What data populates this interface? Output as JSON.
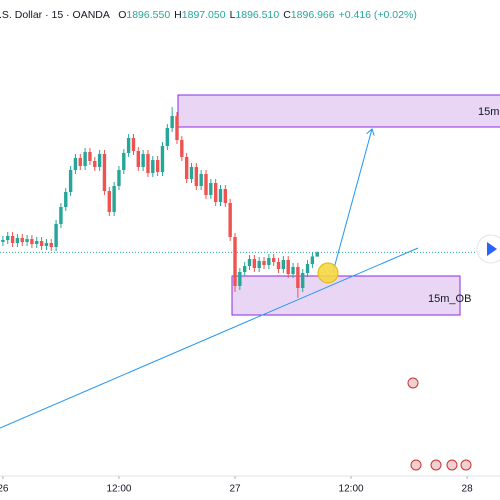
{
  "header": {
    "symbol": ".S. Dollar · 15 · OANDA",
    "ohlc": [
      {
        "label": "O",
        "value": "1896.550"
      },
      {
        "label": "H",
        "value": "1897.050"
      },
      {
        "label": "L",
        "value": "1896.510"
      },
      {
        "label": "C",
        "value": "1896.966"
      }
    ],
    "change": "+0.416 (+0.02%)"
  },
  "zones": [
    {
      "label": "15m"
    },
    {
      "label": "15m_OB"
    }
  ],
  "chart_data": {
    "type": "candlestick",
    "x": [
      0,
      0.5,
      1,
      1.5,
      2,
      2.5,
      3,
      3.5,
      4,
      4.5,
      5,
      5.5,
      6,
      6.5,
      7,
      7.5,
      8,
      8.5,
      9,
      9.5,
      10,
      10.5,
      11,
      11.5,
      12,
      12.5,
      13,
      13.5,
      14,
      14.5,
      15,
      15.5,
      16,
      16.5,
      17,
      17.5,
      18,
      18.5,
      19,
      19.5,
      20,
      20.5,
      21,
      21.5,
      22,
      22.5,
      23,
      23.5,
      24,
      24.5,
      25,
      25.5,
      26,
      26.5,
      27,
      27.5,
      28,
      28.5,
      29,
      29.5,
      30,
      30.5,
      31,
      31.5,
      32,
      32.5
    ],
    "open": [
      1898.0,
      1898.2,
      1898.6,
      1897.9,
      1898.4,
      1898.0,
      1898.3,
      1897.8,
      1898.1,
      1897.6,
      1897.9,
      1897.5,
      1899.8,
      1901.5,
      1903.0,
      1905.2,
      1906.4,
      1905.6,
      1907.0,
      1906.1,
      1905.5,
      1906.8,
      1903.1,
      1901.0,
      1903.6,
      1905.2,
      1906.9,
      1908.4,
      1907.1,
      1905.5,
      1906.8,
      1904.9,
      1906.2,
      1905.0,
      1907.6,
      1909.4,
      1910.6,
      1908.2,
      1906.5,
      1904.3,
      1905.5,
      1903.6,
      1904.8,
      1902.7,
      1903.9,
      1902.0,
      1903.3,
      1901.9,
      1898.5,
      1893.6,
      1895.0,
      1895.6,
      1896.3,
      1895.4,
      1896.1,
      1895.7,
      1896.4,
      1896.0,
      1895.3,
      1896.2,
      1894.8,
      1895.5,
      1893.4,
      1894.9,
      1895.8,
      1896.55
    ],
    "high": [
      1898.6,
      1899.0,
      1899.0,
      1898.8,
      1898.8,
      1898.7,
      1898.7,
      1898.5,
      1898.5,
      1898.3,
      1898.3,
      1900.2,
      1901.9,
      1903.4,
      1905.6,
      1906.8,
      1906.8,
      1907.4,
      1907.4,
      1906.5,
      1907.2,
      1907.2,
      1903.5,
      1904.0,
      1905.6,
      1907.3,
      1908.8,
      1908.8,
      1907.5,
      1907.2,
      1907.2,
      1906.6,
      1906.6,
      1908.0,
      1909.8,
      1911.5,
      1911.0,
      1908.6,
      1906.9,
      1905.9,
      1905.9,
      1905.2,
      1905.2,
      1904.3,
      1904.3,
      1903.7,
      1903.7,
      1902.3,
      1898.9,
      1895.4,
      1896.0,
      1896.7,
      1896.7,
      1896.5,
      1896.5,
      1896.8,
      1896.8,
      1896.4,
      1896.6,
      1896.6,
      1895.9,
      1895.9,
      1895.3,
      1896.2,
      1896.95,
      1897.05
    ],
    "low": [
      1897.6,
      1897.8,
      1897.5,
      1897.5,
      1897.6,
      1897.6,
      1897.4,
      1897.4,
      1897.2,
      1897.2,
      1897.1,
      1897.1,
      1899.4,
      1901.1,
      1902.6,
      1904.8,
      1905.2,
      1905.2,
      1905.7,
      1905.1,
      1905.1,
      1902.7,
      1900.6,
      1900.6,
      1903.2,
      1904.8,
      1906.5,
      1906.7,
      1905.1,
      1905.1,
      1904.5,
      1904.5,
      1904.6,
      1904.6,
      1907.2,
      1909.0,
      1907.8,
      1906.1,
      1903.9,
      1903.9,
      1903.2,
      1903.2,
      1902.3,
      1902.3,
      1901.6,
      1901.6,
      1901.5,
      1898.1,
      1893.0,
      1893.2,
      1894.6,
      1895.2,
      1895.0,
      1895.0,
      1895.3,
      1895.3,
      1895.6,
      1894.9,
      1894.9,
      1894.4,
      1894.4,
      1892.4,
      1893.0,
      1894.5,
      1895.4,
      1896.51
    ],
    "close": [
      1898.2,
      1898.6,
      1897.9,
      1898.4,
      1898.0,
      1898.3,
      1897.8,
      1898.1,
      1897.6,
      1897.9,
      1897.5,
      1899.8,
      1901.5,
      1903.0,
      1905.2,
      1906.4,
      1905.6,
      1907.0,
      1906.1,
      1905.5,
      1906.8,
      1903.1,
      1901.0,
      1903.6,
      1905.2,
      1906.9,
      1908.4,
      1907.1,
      1905.5,
      1906.8,
      1904.9,
      1906.2,
      1905.0,
      1907.6,
      1909.4,
      1910.6,
      1908.2,
      1906.5,
      1904.3,
      1905.5,
      1903.6,
      1904.8,
      1902.7,
      1903.9,
      1902.0,
      1903.3,
      1901.9,
      1898.5,
      1893.6,
      1895.0,
      1895.6,
      1896.3,
      1895.4,
      1896.1,
      1895.7,
      1896.4,
      1896.0,
      1895.3,
      1896.2,
      1894.8,
      1895.5,
      1893.4,
      1894.9,
      1895.8,
      1896.55,
      1896.966
    ],
    "up_color": "#26a69a",
    "down_color": "#ef5350",
    "xlim": [
      -0.3,
      51.4
    ],
    "xticks": [
      {
        "value": 0,
        "label": "26"
      },
      {
        "value": 12,
        "label": "12:00"
      },
      {
        "value": 24,
        "label": "27"
      },
      {
        "value": 36,
        "label": "12:00"
      },
      {
        "value": 48,
        "label": "28"
      }
    ],
    "ylim": [
      1875.2,
      1922.2
    ],
    "grid": false
  }
}
